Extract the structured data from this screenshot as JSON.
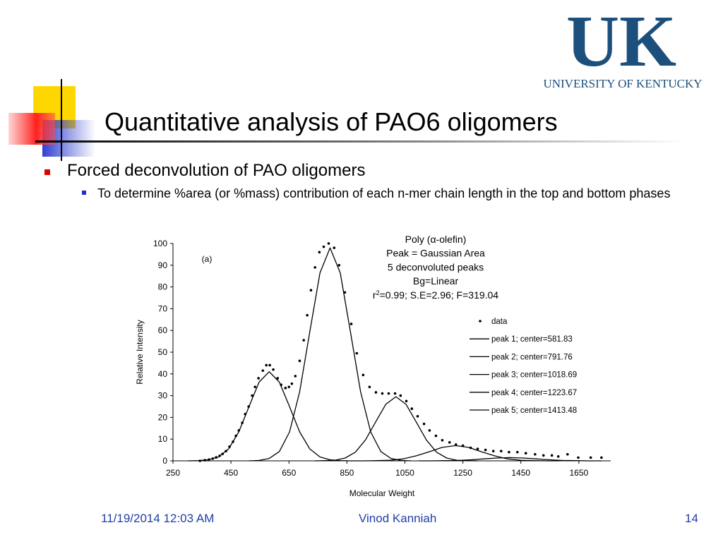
{
  "slide": {
    "logo": {
      "letters": "UK",
      "name": "UNIVERSITY OF KENTUCKY"
    },
    "title": "Quantitative analysis of PAO6 oligomers",
    "bullet": "Forced deconvolution of PAO oligomers",
    "sub_bullet": "To determine %area (or %mass) contribution of each n-mer chain length in the top and bottom phases",
    "footer": {
      "date": "11/19/2014 12:03 AM",
      "author": "Vinod Kanniah",
      "page": 14
    }
  },
  "chart_data": {
    "type": "scatter",
    "x_label": "Molecular Weight",
    "y_label": "Relative Intensity",
    "panel_label": "(a)",
    "annotations": [
      "Poly (α-olefin)",
      "Peak = Gaussian Area",
      "5 deconvoluted peaks",
      "Bg=Linear"
    ],
    "fit": {
      "base": "r",
      "sup": "2",
      "rest": "=0.99; S.E=2.96; F=319.04"
    },
    "xlim": [
      250,
      1760
    ],
    "ylim": [
      0,
      100
    ],
    "xticks": [
      250,
      450,
      650,
      850,
      1050,
      1250,
      1450,
      1650
    ],
    "yticks": [
      0,
      10,
      20,
      30,
      40,
      50,
      60,
      70,
      80,
      90,
      100
    ],
    "series": [
      {
        "name": "data",
        "type": "scatter",
        "color": "#000000",
        "x": [
          343,
          360,
          374,
          387,
          399,
          411,
          421,
          433,
          445,
          457,
          467,
          477,
          489,
          499,
          511,
          523,
          533,
          545,
          560,
          572,
          584,
          596,
          611,
          623,
          638,
          650,
          660,
          672,
          687,
          701,
          713,
          726,
          740,
          755,
          770,
          787,
          806,
          823,
          843,
          865,
          884,
          906,
          928,
          950,
          972,
          994,
          1016,
          1035,
          1055,
          1074,
          1094,
          1116,
          1135,
          1157,
          1179,
          1204,
          1226,
          1250,
          1277,
          1301,
          1328,
          1355,
          1382,
          1409,
          1438,
          1467,
          1499,
          1528,
          1557,
          1579,
          1611,
          1648,
          1691,
          1728
        ],
        "values": [
          0,
          0.3,
          0.6,
          1,
          1.6,
          2.3,
          3.2,
          4.5,
          6.5,
          8.8,
          11.5,
          14,
          17.5,
          21.5,
          25,
          30,
          34,
          38,
          41.5,
          44,
          44,
          42,
          38,
          35,
          33.5,
          34,
          35.5,
          39,
          46,
          55.5,
          67,
          78.5,
          89,
          96,
          98.5,
          100,
          98,
          90,
          77.5,
          63,
          49.5,
          39.5,
          34,
          31.5,
          31,
          31,
          31,
          30,
          27.5,
          24,
          20.5,
          17,
          14,
          11.5,
          9.5,
          8.5,
          7.5,
          7,
          6,
          5.5,
          5,
          4.5,
          4.5,
          4,
          4,
          3.5,
          3,
          2.5,
          2.5,
          2,
          3,
          1.5,
          1.5,
          1.5
        ]
      },
      {
        "name": "peak 1; center=581.83",
        "type": "line",
        "color": "#000000",
        "x": [
          302,
          337,
          372,
          407,
          442,
          477,
          512,
          547,
          582,
          617,
          652,
          687,
          722,
          757,
          792,
          827,
          862
        ],
        "values": [
          0,
          0.1,
          0.5,
          1.8,
          5.5,
          13.3,
          24.9,
          36.2,
          41,
          36.2,
          24.9,
          13.3,
          5.5,
          1.8,
          0.5,
          0.1,
          0
        ]
      },
      {
        "name": "peak 2; center=791.76",
        "type": "line",
        "color": "#000000",
        "x": [
          512,
          547,
          582,
          617,
          652,
          687,
          722,
          757,
          792,
          827,
          862,
          897,
          932,
          967,
          1002,
          1037,
          1072
        ],
        "values": [
          0,
          0.2,
          1.1,
          4.3,
          13.3,
          31.8,
          59.4,
          86.5,
          98,
          86.5,
          59.4,
          31.8,
          13.3,
          4.3,
          1.1,
          0.2,
          0
        ]
      },
      {
        "name": "peak 3; center=1018.69",
        "type": "line",
        "color": "#000000",
        "x": [
          739,
          774,
          809,
          844,
          879,
          914,
          949,
          984,
          1019,
          1054,
          1089,
          1124,
          1159,
          1194,
          1229,
          1264,
          1299
        ],
        "values": [
          0,
          0.1,
          0.3,
          1.3,
          4,
          9.6,
          17.9,
          26,
          29.5,
          26,
          17.9,
          9.6,
          4,
          1.3,
          0.3,
          0.1,
          0
        ]
      },
      {
        "name": "peak 4; center=1223.67",
        "type": "line",
        "color": "#000000",
        "x": [
          864,
          909,
          954,
          999,
          1044,
          1089,
          1134,
          1179,
          1224,
          1269,
          1314,
          1359,
          1404,
          1449,
          1494,
          1539,
          1584
        ],
        "values": [
          0,
          0,
          0.1,
          0.3,
          0.9,
          2.3,
          4.2,
          6.2,
          7,
          6.2,
          4.2,
          2.3,
          0.9,
          0.3,
          0.1,
          0,
          0
        ]
      },
      {
        "name": "peak 5; center=1413.48",
        "type": "line",
        "color": "#000000",
        "x": [
          1098,
          1143,
          1188,
          1233,
          1278,
          1323,
          1368,
          1413,
          1458,
          1503,
          1548,
          1593,
          1638,
          1683,
          1728
        ],
        "values": [
          0,
          0,
          0.1,
          0.2,
          0.5,
          0.9,
          1.3,
          1.5,
          1.3,
          0.9,
          0.5,
          0.2,
          0.1,
          0,
          0
        ]
      }
    ]
  }
}
